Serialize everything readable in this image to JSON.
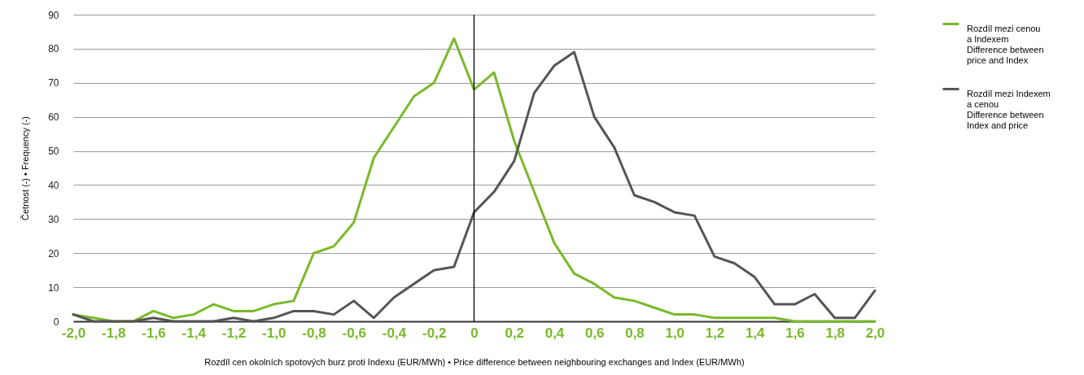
{
  "chart_data": {
    "type": "line",
    "xlabel": "Rozdíl cen okolních spotových burz proti Indexu (EUR/MWh) • Price difference between neighbouring exchanges and Index (EUR/MWh)",
    "ylabel": "Četnost (-) • Frequency (-)",
    "x": [
      -2.0,
      -1.9,
      -1.8,
      -1.7,
      -1.6,
      -1.5,
      -1.4,
      -1.3,
      -1.2,
      -1.1,
      -1.0,
      -0.9,
      -0.8,
      -0.7,
      -0.6,
      -0.5,
      -0.4,
      -0.3,
      -0.2,
      -0.1,
      0,
      0.1,
      0.2,
      0.3,
      0.4,
      0.5,
      0.6,
      0.7,
      0.8,
      0.9,
      1.0,
      1.1,
      1.2,
      1.3,
      1.4,
      1.5,
      1.6,
      1.7,
      1.8,
      1.9,
      2.0
    ],
    "series": [
      {
        "name": "Rozdíl mezi cenou\na Indexem\nDifference between\nprice and Index",
        "color": "#7ab929",
        "values": [
          2,
          1,
          0,
          0,
          3,
          1,
          2,
          5,
          3,
          3,
          5,
          6,
          20,
          22,
          29,
          48,
          57,
          66,
          70,
          83,
          68,
          73,
          53,
          38,
          23,
          14,
          11,
          7,
          6,
          4,
          2,
          2,
          1,
          1,
          1,
          1,
          0,
          0,
          0,
          0,
          0
        ]
      },
      {
        "name": "Rozdíl mezi Indexem\na cenou\nDifference between\nIndex and price",
        "color": "#555555",
        "values": [
          2,
          0,
          0,
          0,
          1,
          0,
          0,
          0,
          1,
          0,
          1,
          3,
          3,
          2,
          6,
          1,
          7,
          11,
          15,
          16,
          32,
          38,
          47,
          67,
          75,
          79,
          60,
          51,
          37,
          35,
          32,
          31,
          19,
          17,
          13,
          5,
          5,
          8,
          1,
          1,
          9
        ]
      }
    ],
    "xlim": [
      -2.0,
      2.0
    ],
    "xticks": [
      {
        "value": -2,
        "label": "-2,0"
      },
      {
        "value": -1.8,
        "label": "-1,8"
      },
      {
        "value": -1.6,
        "label": "-1,6"
      },
      {
        "value": -1.4,
        "label": "-1,4"
      },
      {
        "value": -1.2,
        "label": "-1,2"
      },
      {
        "value": -1,
        "label": "-1,0"
      },
      {
        "value": -0.8,
        "label": "-0,8"
      },
      {
        "value": -0.6,
        "label": "-0,6"
      },
      {
        "value": -0.4,
        "label": "-0,4"
      },
      {
        "value": -0.2,
        "label": "-0,2"
      },
      0,
      {
        "value": 0.2,
        "label": "0,2"
      },
      {
        "value": 0.4,
        "label": "0,4"
      },
      {
        "value": 0.6,
        "label": "0,6"
      },
      {
        "value": 0.8,
        "label": "0,8"
      },
      {
        "value": 1,
        "label": "1,0"
      },
      {
        "value": 1.2,
        "label": "1,2"
      },
      {
        "value": 1.4,
        "label": "1,4"
      },
      {
        "value": 1.6,
        "label": "1,6"
      },
      {
        "value": 1.8,
        "label": "1,8"
      },
      {
        "value": 2,
        "label": "2,0"
      }
    ],
    "ylim": [
      0,
      90
    ],
    "yticks": [
      0,
      10,
      20,
      30,
      40,
      50,
      60,
      70,
      80,
      90
    ],
    "ref_lines": [
      {
        "axis": "x",
        "value": 0,
        "color": "#000000"
      }
    ],
    "grid": "y",
    "legend": "top right",
    "marker": "none",
    "line_style": "solid"
  }
}
